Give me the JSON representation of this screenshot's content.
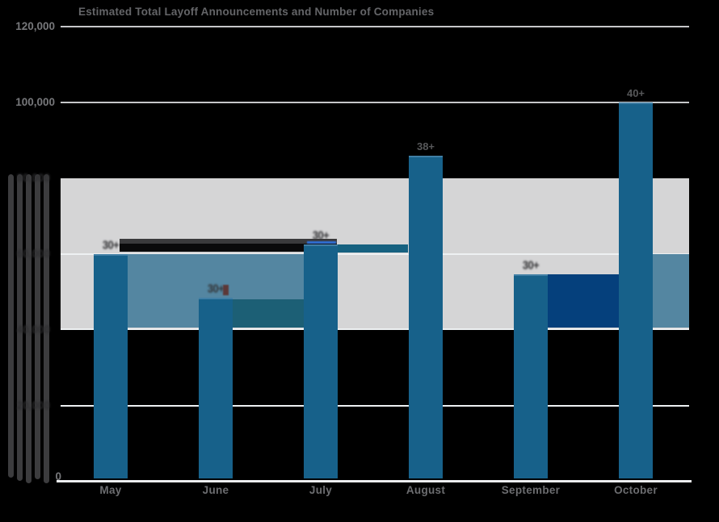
{
  "title": "Estimated Total Layoff Announcements and Number of Companies",
  "chart_data": {
    "type": "bar",
    "title": "Estimated Total Layoff Announcements and Number of Companies",
    "categories": [
      "May",
      "June",
      "July",
      "August",
      "September",
      "October"
    ],
    "series": [
      {
        "name": "Estimated total layoff announcements",
        "type": "bar",
        "values": [
          60000,
          48500,
          62500,
          86000,
          54700,
          100000
        ]
      },
      {
        "name": "Number of companies",
        "type": "data-label",
        "values": [
          "30+",
          "30+",
          "30+",
          "38+",
          "30+",
          "40+"
        ],
        "smeared": [
          true,
          true,
          true,
          false,
          true,
          false
        ]
      }
    ],
    "ylim": [
      0,
      120000
    ],
    "ytick_interval": 20000,
    "ytick_labels": [
      "0",
      "20,000",
      "40,000",
      "60,000",
      "80,000",
      "100,000",
      "120,000"
    ],
    "grid": "horizontal",
    "legend_position": "none",
    "highlight_band": {
      "from": 40000,
      "to": 80000,
      "color": "#D5D5D6"
    }
  },
  "y_axis": {
    "top_label": "120,000",
    "second_label": "100,000",
    "zero_label": "0",
    "smeared_labels": [
      "80,000",
      "60,000",
      "40,000",
      "20,000"
    ]
  },
  "colors": {
    "background": "#000000",
    "bar": "#17618A",
    "steel_band": "#5486A1",
    "teal_band": "#1C5F75",
    "navy_band": "#05407C",
    "gray_band": "#D5D5D6",
    "gridline_gray": "#C6C7C9",
    "gridline_white": "#EDF0F2",
    "title_text": "#646568",
    "tick_text": "#77787B"
  }
}
